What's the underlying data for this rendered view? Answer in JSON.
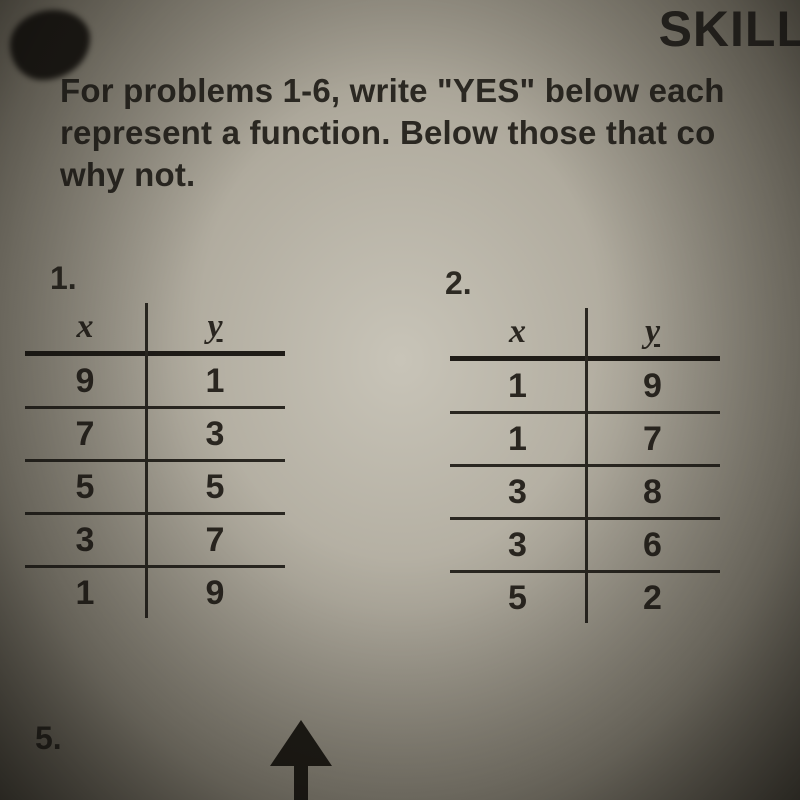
{
  "header": {
    "cutoff_title": "SKILL"
  },
  "instructions": {
    "line1": "For problems 1-6, write \"YES\" below each",
    "line2": "represent a function. Below those that co",
    "line3": "why not."
  },
  "problems": {
    "p1": {
      "number": "1.",
      "x_label": "x",
      "y_label": "y",
      "rows": [
        {
          "x": "9",
          "y": "1"
        },
        {
          "x": "7",
          "y": "3"
        },
        {
          "x": "5",
          "y": "5"
        },
        {
          "x": "3",
          "y": "7"
        },
        {
          "x": "1",
          "y": "9"
        }
      ]
    },
    "p2": {
      "number": "2.",
      "x_label": "x",
      "y_label": "y",
      "rows": [
        {
          "x": "1",
          "y": "9"
        },
        {
          "x": "1",
          "y": "7"
        },
        {
          "x": "3",
          "y": "8"
        },
        {
          "x": "3",
          "y": "6"
        },
        {
          "x": "5",
          "y": "2"
        }
      ]
    },
    "p5": {
      "number": "5."
    }
  },
  "style": {
    "text_color": "#2a2721",
    "rule_color": "#2a2721",
    "heavy_rule_color": "#1f1c17",
    "body_font_size_pt": 25,
    "cell_font_size_pt": 26
  }
}
